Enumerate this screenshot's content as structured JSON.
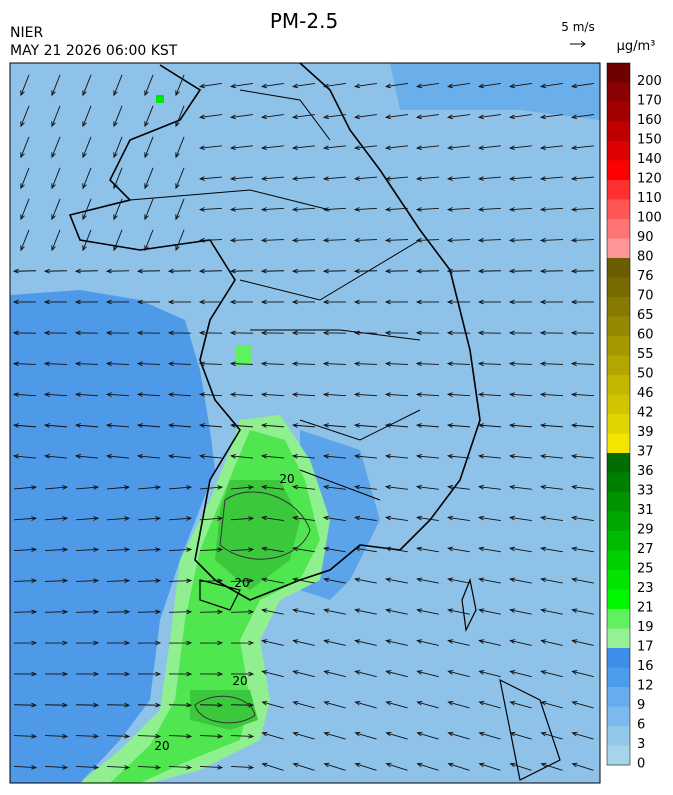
{
  "header": {
    "title": "PM-2.5",
    "agency": "NIER",
    "datetime": "MAY 21 2026 06:00 KST",
    "wind_scale": "5 m/s",
    "unit": "μg/m³"
  },
  "colorbar": [
    {
      "label": "200",
      "color": "#700000"
    },
    {
      "label": "170",
      "color": "#8b0000"
    },
    {
      "label": "160",
      "color": "#a30000"
    },
    {
      "label": "150",
      "color": "#c00000"
    },
    {
      "label": "140",
      "color": "#dd0000"
    },
    {
      "label": "120",
      "color": "#ff0000"
    },
    {
      "label": "110",
      "color": "#ff3030"
    },
    {
      "label": "100",
      "color": "#ff5555"
    },
    {
      "label": "90",
      "color": "#ff7575"
    },
    {
      "label": "80",
      "color": "#ff9595"
    },
    {
      "label": "76",
      "color": "#6a5e00"
    },
    {
      "label": "70",
      "color": "#786c00"
    },
    {
      "label": "65",
      "color": "#877a00"
    },
    {
      "label": "60",
      "color": "#968800"
    },
    {
      "label": "55",
      "color": "#a59700"
    },
    {
      "label": "50",
      "color": "#b4a600"
    },
    {
      "label": "46",
      "color": "#c3b500"
    },
    {
      "label": "42",
      "color": "#d2c400"
    },
    {
      "label": "39",
      "color": "#e1d300"
    },
    {
      "label": "37",
      "color": "#f2e600"
    },
    {
      "label": "36",
      "color": "#006e00"
    },
    {
      "label": "33",
      "color": "#008000"
    },
    {
      "label": "31",
      "color": "#009400"
    },
    {
      "label": "29",
      "color": "#00a800"
    },
    {
      "label": "27",
      "color": "#00bc00"
    },
    {
      "label": "25",
      "color": "#00d000"
    },
    {
      "label": "23",
      "color": "#00e400"
    },
    {
      "label": "21",
      "color": "#00f800"
    },
    {
      "label": "19",
      "color": "#60f060"
    },
    {
      "label": "17",
      "color": "#94f294"
    },
    {
      "label": "16",
      "color": "#3c8ee8"
    },
    {
      "label": "12",
      "color": "#4c9cec"
    },
    {
      "label": "9",
      "color": "#66acee"
    },
    {
      "label": "6",
      "color": "#7cb9ec"
    },
    {
      "label": "3",
      "color": "#94c8ea"
    },
    {
      "label": "0",
      "color": "#a8d4ea"
    }
  ],
  "map": {
    "contour_labels": [
      "20",
      "20",
      "20",
      "20"
    ]
  }
}
